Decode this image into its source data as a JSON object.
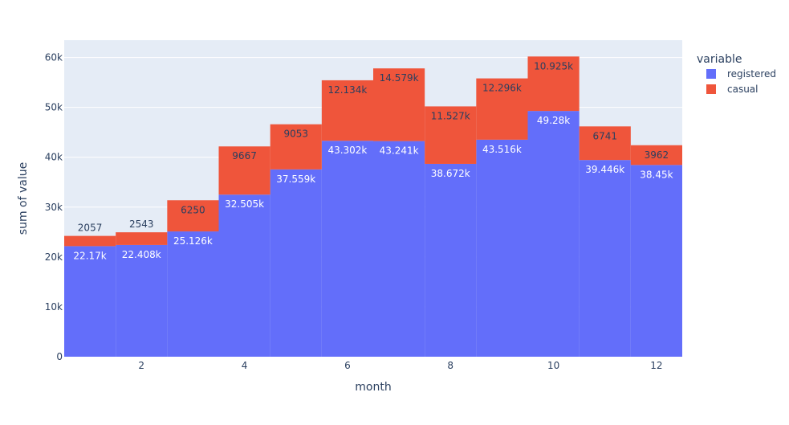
{
  "chart_data": {
    "type": "bar",
    "barmode": "stack",
    "x": [
      1,
      2,
      3,
      4,
      5,
      6,
      7,
      8,
      9,
      10,
      11,
      12
    ],
    "series": [
      {
        "name": "registered",
        "color": "#636efa",
        "values": [
          22170,
          22408,
          25126,
          32505,
          37559,
          43302,
          43241,
          38672,
          43516,
          49280,
          39446,
          38450
        ],
        "labels": [
          "22.17k",
          "22.408k",
          "25.126k",
          "32.505k",
          "37.559k",
          "43.302k",
          "43.241k",
          "38.672k",
          "43.516k",
          "49.28k",
          "39.446k",
          "38.45k"
        ]
      },
      {
        "name": "casual",
        "color": "#ef553b",
        "values": [
          2057,
          2543,
          6250,
          9667,
          9053,
          12134,
          14579,
          11527,
          12296,
          10925,
          6741,
          3962
        ],
        "labels": [
          "2057",
          "2543",
          "6250",
          "9667",
          "9053",
          "12.134k",
          "14.579k",
          "11.527k",
          "12.296k",
          "10.925k",
          "6741",
          "3962"
        ]
      }
    ],
    "xlabel": "month",
    "ylabel": "sum of value",
    "xlim": [
      0.5,
      12.5
    ],
    "ylim": [
      0,
      63478
    ],
    "xticks": [
      2,
      4,
      6,
      8,
      10,
      12
    ],
    "xtick_labels": [
      "2",
      "4",
      "6",
      "8",
      "10",
      "12"
    ],
    "yticks": [
      0,
      10000,
      20000,
      30000,
      40000,
      50000,
      60000
    ],
    "ytick_labels": [
      "0",
      "10k",
      "20k",
      "30k",
      "40k",
      "50k",
      "60k"
    ],
    "grid": true,
    "plot_bgcolor": "#e5ecf6",
    "legend_title": "variable",
    "legend_position": "top-right"
  }
}
